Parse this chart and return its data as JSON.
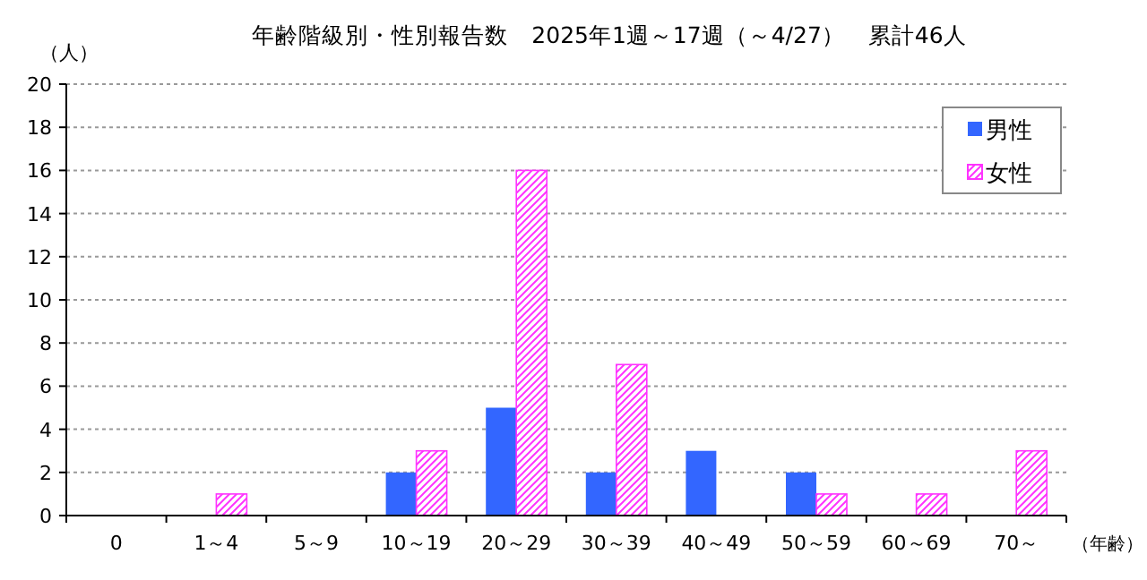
{
  "chart_data": {
    "type": "bar",
    "title": "年齢階級別・性別報告数　2025年1週～17週（～4/27）　累計46人",
    "ylabel": "（人）",
    "xlabel": "（年齢）",
    "categories": [
      "0",
      "1～4",
      "5～9",
      "10～19",
      "20～29",
      "30～39",
      "40～49",
      "50～59",
      "60～69",
      "70～"
    ],
    "series": [
      {
        "name": "男性",
        "color": "#3366ff",
        "values": [
          0,
          0,
          0,
          2,
          5,
          2,
          3,
          2,
          0,
          0
        ]
      },
      {
        "name": "女性",
        "color": "#ff33ff",
        "values": [
          0,
          1,
          0,
          3,
          16,
          7,
          0,
          1,
          1,
          3
        ]
      }
    ],
    "ylim": [
      0,
      20
    ],
    "yticks": [
      0,
      2,
      4,
      6,
      8,
      10,
      12,
      14,
      16,
      18,
      20
    ],
    "grid": "y",
    "legend": "top right"
  }
}
